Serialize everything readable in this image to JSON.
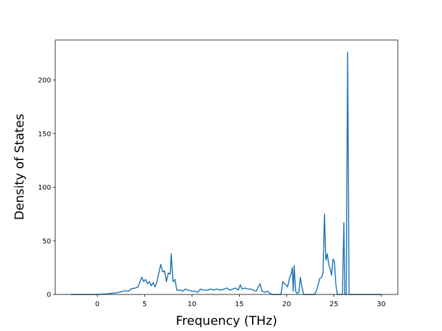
{
  "chart_data": {
    "type": "line",
    "x_label": "Frequency (THz)",
    "y_label": "Density of States",
    "xlim": [
      -4.45,
      31.75
    ],
    "ylim": [
      0,
      237.3
    ],
    "xticks": [
      0,
      5,
      10,
      15,
      20,
      25,
      30
    ],
    "yticks": [
      0,
      50,
      100,
      150,
      200
    ],
    "grid": false,
    "series": [
      {
        "color": "#1f77b4",
        "x": [
          -2.8,
          0,
          1,
          2,
          2.5,
          3,
          3.3,
          3.5,
          4,
          4.3,
          4.5,
          4.7,
          4.9,
          5.1,
          5.3,
          5.5,
          5.7,
          5.9,
          6.1,
          6.3,
          6.5,
          6.7,
          6.9,
          7.1,
          7.3,
          7.5,
          7.7,
          7.8,
          8.0,
          8.2,
          8.4,
          8.8,
          9.0,
          9.3,
          9.6,
          10,
          10.3,
          10.6,
          10.9,
          11.2,
          11.6,
          12,
          12.3,
          12.6,
          13,
          13.4,
          13.7,
          14,
          14.3,
          14.6,
          14.9,
          15.1,
          15.3,
          15.6,
          15.9,
          16.2,
          16.5,
          16.8,
          17,
          17.2,
          17.4,
          17.7,
          18,
          18.3,
          18.6,
          19.4,
          19.6,
          19.9,
          20.1,
          20.3,
          20.5,
          20.6,
          20.7,
          20.8,
          20.95,
          21.1,
          21.3,
          21.45,
          21.6,
          21.8,
          22.9,
          23.1,
          23.3,
          23.5,
          23.7,
          23.85,
          24.0,
          24.15,
          24.3,
          24.45,
          24.6,
          24.75,
          24.9,
          25.05,
          25.2,
          25.35,
          25.9,
          26.05,
          26.15,
          26.3,
          26.45,
          26.6,
          30
        ],
        "values": [
          0,
          0,
          0.5,
          1.5,
          2.5,
          3.5,
          3,
          5,
          6,
          7,
          12,
          16,
          12,
          14,
          10,
          12,
          8,
          11,
          7,
          12,
          20,
          28,
          21,
          22,
          12,
          20,
          19,
          38,
          12,
          14,
          4,
          4,
          3,
          5,
          4,
          3,
          3,
          2,
          5,
          4,
          4,
          5,
          4,
          5,
          4,
          5,
          6,
          4,
          5,
          6,
          4,
          9,
          5,
          6,
          5,
          5,
          4,
          3,
          7,
          10,
          3,
          2,
          3,
          0.5,
          0,
          0,
          12,
          9,
          7,
          15,
          20,
          25,
          3,
          27,
          3,
          1,
          2,
          16,
          8,
          0,
          0,
          2,
          8,
          15,
          16,
          20,
          75,
          32,
          38,
          28,
          24,
          18,
          33,
          31,
          10,
          0,
          0,
          67,
          0,
          0,
          226,
          0,
          0
        ]
      }
    ]
  }
}
